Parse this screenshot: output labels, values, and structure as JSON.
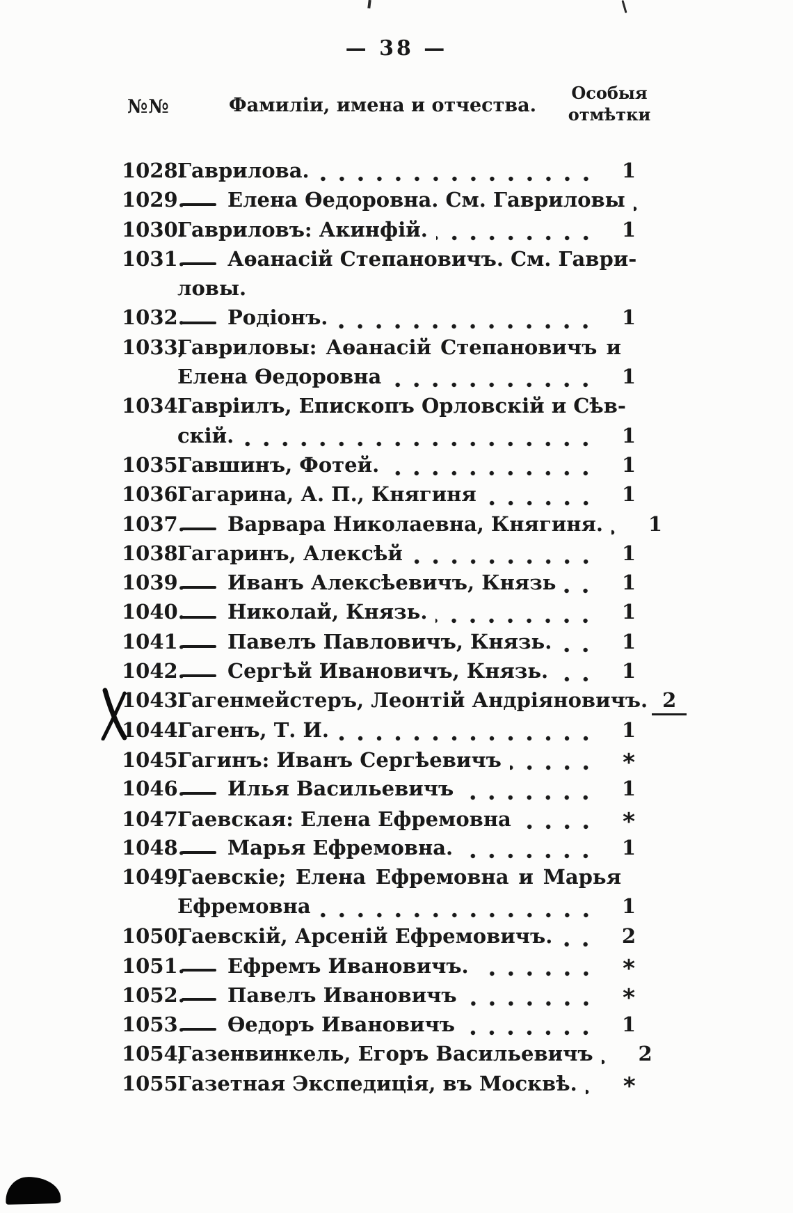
{
  "page": {
    "page_number": "— 38 —",
    "columns": {
      "numbers": "№№",
      "names": "Фамиліи, имена и отчества.",
      "marks_line1": "Особыя",
      "marks_line2": "отмѣтки"
    },
    "marginalia": {
      "handwritten_cross_beside_entry": "1043"
    }
  },
  "rows": [
    {
      "num": "1028.",
      "name": "Гаврилова.",
      "leader": true,
      "mark": "1"
    },
    {
      "num": "1029.",
      "name": "Елена Ѳедоровна. См. Гавриловы",
      "dash": true,
      "leader": true,
      "mark": ""
    },
    {
      "num": "1030.",
      "name": "Гавриловъ: Акинфій.",
      "leader": true,
      "mark": "1"
    },
    {
      "num": "1031.",
      "name": "Аѳанасій Степановичъ. См. Гаври-",
      "dash": true,
      "spread": true
    },
    {
      "num": "",
      "name": "ловы.",
      "cont": true
    },
    {
      "num": "1032.",
      "name": "Родіонъ.",
      "dash": true,
      "leader": true,
      "mark": "1"
    },
    {
      "num": "1033,",
      "name": "Гавриловы: Аѳанасій Степановичъ и",
      "spread": true
    },
    {
      "num": "",
      "name": "Елена Ѳедоровна",
      "cont": true,
      "leader": true,
      "mark": "1"
    },
    {
      "num": "1034.",
      "name": "Гавріилъ, Епископъ Орловскій и Сѣв-",
      "spread": true
    },
    {
      "num": "",
      "name": "скій.",
      "cont": true,
      "leader": true,
      "mark": "1"
    },
    {
      "num": "1035.",
      "name": "Гавшинъ, Фотей.",
      "leader": true,
      "mark": "1"
    },
    {
      "num": "1036.",
      "name": "Гагарина, А. П., Княгиня",
      "leader": true,
      "mark": "1"
    },
    {
      "num": "1037.",
      "name": "Варвара Николаевна, Княгиня.",
      "dash": true,
      "leader": true,
      "mark": "1"
    },
    {
      "num": "1038.",
      "name": "Гагаринъ, Алексѣй",
      "leader": true,
      "mark": "1"
    },
    {
      "num": "1039.",
      "name": "Иванъ Алексѣевичъ, Князь",
      "dash": true,
      "leader": true,
      "mark": "1"
    },
    {
      "num": "1040.",
      "name": "Николай, Князь.",
      "dash": true,
      "leader": true,
      "mark": "1"
    },
    {
      "num": "1041.",
      "name": "Павелъ Павловичъ, Князь.",
      "dash": true,
      "leader": true,
      "mark": "1"
    },
    {
      "num": "1042.",
      "name": "Сергѣй Ивановичъ, Князь.",
      "dash": true,
      "leader": true,
      "mark": "1"
    },
    {
      "num": "1043.",
      "name": "Гагенмейстеръ, Леонтій Андріяновичъ.",
      "mark": "2",
      "mark_underline": true,
      "margin_x": true
    },
    {
      "num": "1044.",
      "name": "Гагенъ, Т. И.",
      "leader": true,
      "mark": "1"
    },
    {
      "num": "1045.",
      "name": "Гагинъ: Иванъ Сергѣевичъ",
      "leader": true,
      "mark": "*"
    },
    {
      "num": "1046.",
      "name": "Илья Васильевичъ",
      "dash": true,
      "leader": true,
      "mark": "1"
    },
    {
      "num": "1047.",
      "name": "Гаевская: Елена Ефремовна",
      "leader": true,
      "mark": "*"
    },
    {
      "num": "1048.",
      "name": "Марья Ефремовна.",
      "dash": true,
      "leader": true,
      "mark": "1"
    },
    {
      "num": "1049,",
      "name": "Гаевскіе; Елена Ефремовна и Марья",
      "spread": true
    },
    {
      "num": "",
      "name": "Ефремовна",
      "cont": true,
      "leader": true,
      "mark": "1"
    },
    {
      "num": "1050,",
      "name": "Гаевскій, Арсеній Ефремовичъ.",
      "leader": true,
      "mark": "2"
    },
    {
      "num": "1051.",
      "name": "Ефремъ Ивановичъ.",
      "dash": true,
      "leader": true,
      "mark": "*"
    },
    {
      "num": "1052.",
      "name": "Павелъ Ивановичъ",
      "dash": true,
      "leader": true,
      "mark": "*"
    },
    {
      "num": "1053.",
      "name": "Ѳедоръ Ивановичъ",
      "dash": true,
      "leader": true,
      "mark": "1"
    },
    {
      "num": "1054,",
      "name": "Газенвинкель, Егоръ Васильевичъ",
      "leader": true,
      "mark": "2"
    },
    {
      "num": "1055.",
      "name": "Газетная Экспедиція, въ Москвѣ.",
      "leader": true,
      "mark": "*"
    }
  ]
}
